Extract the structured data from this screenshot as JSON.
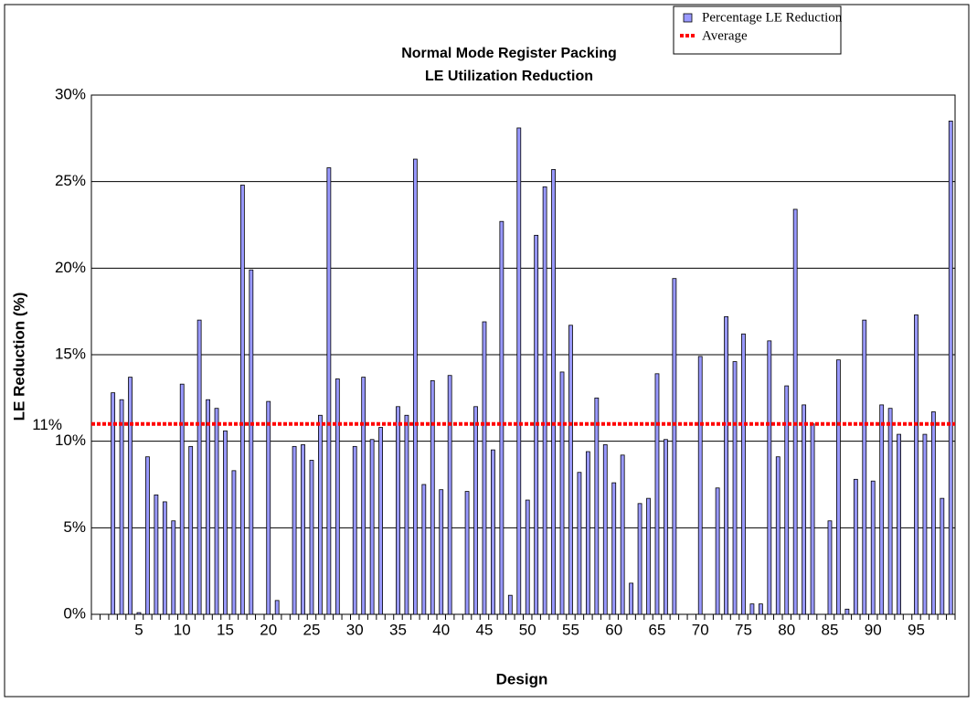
{
  "chart_data": {
    "type": "bar",
    "title": "Normal Mode Register Packing",
    "subtitle": "LE Utilization Reduction",
    "x_label": "Design",
    "y_label": "LE Reduction (%)",
    "categories": [
      null,
      null,
      null,
      null,
      null,
      "5",
      null,
      null,
      null,
      null,
      "10",
      null,
      null,
      null,
      null,
      "15",
      null,
      null,
      null,
      null,
      "20",
      null,
      null,
      null,
      null,
      "25",
      null,
      null,
      null,
      null,
      "30",
      null,
      null,
      null,
      null,
      "35",
      null,
      null,
      null,
      null,
      "40",
      null,
      null,
      null,
      null,
      "45",
      null,
      null,
      null,
      null,
      "50",
      null,
      null,
      null,
      null,
      "55",
      null,
      null,
      null,
      null,
      "60",
      null,
      null,
      null,
      null,
      "65",
      null,
      null,
      null,
      null,
      "70",
      null,
      null,
      null,
      null,
      "75",
      null,
      null,
      null,
      null,
      "80",
      null,
      null,
      null,
      null,
      "85",
      null,
      null,
      null,
      null,
      "90",
      null,
      null,
      null,
      null,
      "95",
      null,
      null,
      null,
      null
    ],
    "series": [
      {
        "name": "Percentage LE Reduction",
        "color": "#9999ff",
        "values": [
          null,
          null,
          12.8,
          12.4,
          13.7,
          0.1,
          9.1,
          6.9,
          6.5,
          5.4,
          13.3,
          9.7,
          17.0,
          12.4,
          11.9,
          10.6,
          8.3,
          24.8,
          19.9,
          null,
          12.3,
          0.8,
          null,
          9.7,
          9.8,
          8.9,
          11.5,
          25.8,
          13.6,
          null,
          9.7,
          13.7,
          10.1,
          10.8,
          null,
          12.0,
          11.5,
          26.3,
          7.5,
          13.5,
          7.2,
          13.8,
          null,
          7.1,
          12.0,
          16.9,
          9.5,
          22.7,
          1.1,
          28.1,
          6.6,
          21.9,
          24.7,
          25.7,
          14.0,
          16.7,
          8.2,
          9.4,
          12.5,
          9.8,
          7.6,
          9.2,
          1.8,
          6.4,
          6.7,
          13.9,
          10.1,
          19.4,
          null,
          null,
          14.9,
          null,
          7.3,
          17.2,
          14.6,
          16.2,
          0.6,
          0.6,
          15.8,
          9.1,
          13.2,
          23.4,
          12.1,
          11.0,
          null,
          5.4,
          14.7,
          0.3,
          7.8,
          17.0,
          7.7,
          12.1,
          11.9,
          10.4,
          null,
          17.3,
          10.4,
          11.7,
          6.7,
          28.5
        ]
      }
    ],
    "average": {
      "name": "Average",
      "color": "#ff0000",
      "value": 11,
      "label": "11%"
    },
    "ylim": [
      0,
      30
    ],
    "yticks": [
      {
        "value": 0,
        "label": "0%"
      },
      {
        "value": 5,
        "label": "5%"
      },
      {
        "value": 10,
        "label": "10%"
      },
      {
        "value": 15,
        "label": "15%"
      },
      {
        "value": 20,
        "label": "20%"
      },
      {
        "value": 25,
        "label": "25%"
      },
      {
        "value": 30,
        "label": "30%"
      }
    ],
    "grid": true
  }
}
